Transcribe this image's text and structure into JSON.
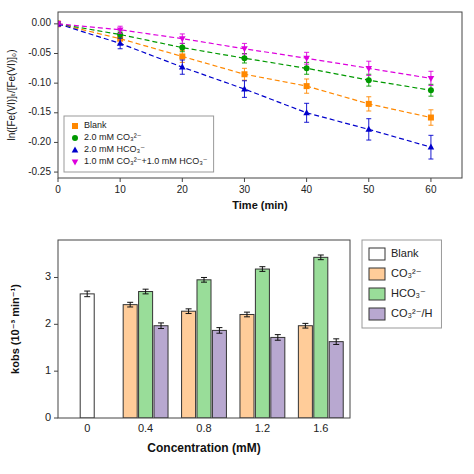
{
  "chart_data": [
    {
      "type": "bar",
      "categories": [
        "0",
        "0.4",
        "0.8",
        "1.2",
        "1.6"
      ],
      "xlabel": "Concentration (mM)",
      "ylabel": "kobs (10⁻³ min⁻¹)",
      "ylim": [
        0,
        3.8
      ],
      "yticks": [
        0,
        1,
        2,
        3
      ],
      "legend": "upper right",
      "series": [
        {
          "name": "Blank",
          "color": "#FFFFFF",
          "values": [
            2.65,
            null,
            null,
            null,
            null
          ],
          "errors": [
            0.06,
            null,
            null,
            null,
            null
          ]
        },
        {
          "name": "CO₃²⁻",
          "color": "#FFCC99",
          "values": [
            null,
            2.42,
            2.28,
            2.21,
            1.97
          ],
          "errors": [
            null,
            0.05,
            0.05,
            0.05,
            0.05
          ]
        },
        {
          "name": "HCO₃⁻",
          "color": "#99DD99",
          "values": [
            null,
            2.7,
            2.95,
            3.18,
            3.43
          ],
          "errors": [
            null,
            0.05,
            0.05,
            0.05,
            0.05
          ]
        },
        {
          "name": "CO₃²⁻/H",
          "color": "#B8A8D0",
          "values": [
            null,
            1.97,
            1.87,
            1.72,
            1.63
          ],
          "errors": [
            null,
            0.06,
            0.06,
            0.06,
            0.06
          ]
        }
      ]
    },
    {
      "type": "line",
      "x": [
        0,
        10,
        20,
        30,
        40,
        50,
        60
      ],
      "xlabel": "Time (min)",
      "ylabel": "ln([Fe(VI)]ₜ/[Fe(VI)]₀)",
      "xlim": [
        0,
        65
      ],
      "xticks": [
        0,
        10,
        20,
        30,
        40,
        50,
        60
      ],
      "ylim": [
        -0.26,
        0.02
      ],
      "yticks": [
        {
          "value": 0.0,
          "label": "0.00"
        },
        {
          "value": -0.05,
          "label": "-0.05"
        },
        {
          "value": -0.1,
          "label": "-0.10"
        },
        {
          "value": -0.15,
          "label": "-0.15"
        },
        {
          "value": -0.2,
          "label": "-0.20"
        },
        {
          "value": -0.25,
          "label": "-0.25"
        }
      ],
      "legend": "lower left",
      "line_style": "dashed",
      "series": [
        {
          "name": "Blank",
          "color": "#FF8800",
          "marker": "square",
          "values": [
            0.0,
            -0.025,
            -0.055,
            -0.085,
            -0.105,
            -0.135,
            -0.158
          ],
          "errors": [
            0.005,
            0.008,
            0.01,
            0.01,
            0.012,
            0.012,
            0.013
          ]
        },
        {
          "name": "2.0 mM CO₃²⁻",
          "color": "#009900",
          "marker": "circle",
          "values": [
            0.0,
            -0.018,
            -0.04,
            -0.058,
            -0.075,
            -0.095,
            -0.112
          ],
          "errors": [
            0.004,
            0.006,
            0.007,
            0.008,
            0.01,
            0.01,
            0.01
          ]
        },
        {
          "name": "2.0 mM HCO₃⁻",
          "color": "#0000CC",
          "marker": "triangle-up",
          "values": [
            0.0,
            -0.033,
            -0.073,
            -0.11,
            -0.15,
            -0.178,
            -0.208
          ],
          "errors": [
            0.004,
            0.009,
            0.012,
            0.014,
            0.016,
            0.018,
            0.02
          ]
        },
        {
          "name": "1.0 mM CO₃²⁻+1.0 mM HCO₃⁻",
          "color": "#DD00DD",
          "marker": "triangle-down",
          "values": [
            0.0,
            -0.01,
            -0.025,
            -0.042,
            -0.058,
            -0.075,
            -0.092
          ],
          "errors": [
            0.004,
            0.006,
            0.008,
            0.009,
            0.01,
            0.012,
            0.012
          ]
        }
      ]
    }
  ]
}
